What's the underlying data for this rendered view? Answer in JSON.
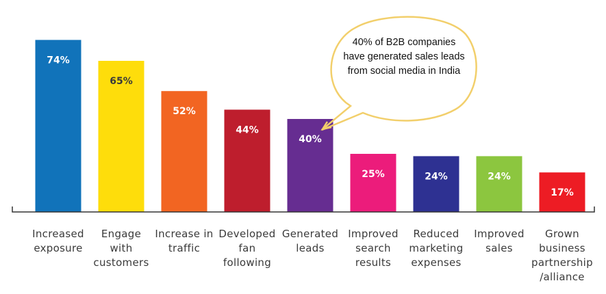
{
  "chart_data": {
    "type": "bar",
    "categories": [
      "Increased exposure",
      "Engage with customers",
      "Increase in traffic",
      "Developed fan following",
      "Generated leads",
      "Improved search results",
      "Reduced marketing expenses",
      "Improved sales",
      "Grown business partnership /alliance"
    ],
    "values": [
      74,
      65,
      52,
      44,
      40,
      25,
      24,
      24,
      17
    ],
    "value_labels": [
      "74%",
      "65%",
      "52%",
      "44%",
      "40%",
      "25%",
      "24%",
      "24%",
      "17%"
    ],
    "colors": [
      "#1173ba",
      "#fedd0b",
      "#f26522",
      "#be1e2d",
      "#662d91",
      "#ec1c7b",
      "#2e3192",
      "#8cc63f",
      "#ed1c24"
    ],
    "annotation": "40% of B2B companies have generated sales leads from social media in India"
  }
}
